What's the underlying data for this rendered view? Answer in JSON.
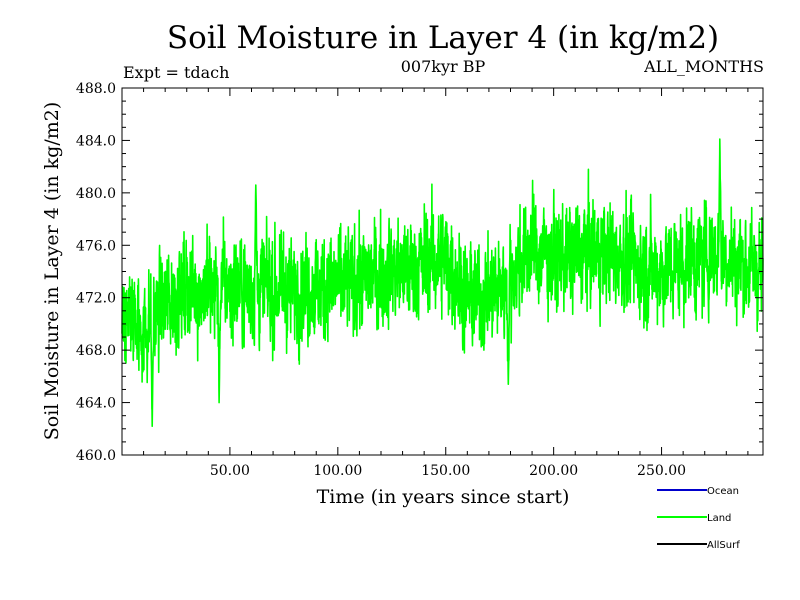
{
  "chart_data": {
    "type": "line",
    "title": "Soil Moisture in Layer 4 (in kg/m2)",
    "subtitle_left": "Expt = tdach",
    "subtitle_center": "007kyr BP",
    "subtitle_right": "ALL_MONTHS",
    "xlabel": "Time (in years since start)",
    "ylabel": "Soil Moisture in Layer 4 (in kg/m2)",
    "xlim": [
      0,
      297
    ],
    "ylim": [
      460,
      488
    ],
    "xticks": [
      50,
      100,
      150,
      200,
      250
    ],
    "xtick_labels": [
      "50.00",
      "100.00",
      "150.00",
      "200.00",
      "250.00"
    ],
    "yticks": [
      460,
      464,
      468,
      472,
      476,
      480,
      484,
      488
    ],
    "ytick_labels": [
      "460.0",
      "464.0",
      "468.0",
      "472.0",
      "476.0",
      "480.0",
      "484.0",
      "488.0"
    ],
    "legend": [
      {
        "name": "Ocean",
        "color": "#0000cc"
      },
      {
        "name": "Land",
        "color": "#00ff00"
      },
      {
        "name": "AllSurf",
        "color": "#000000"
      }
    ],
    "series": [
      {
        "name": "Land",
        "color": "#00ff00",
        "trend_x": [
          0,
          10,
          20,
          30,
          50,
          75,
          100,
          125,
          150,
          160,
          175,
          190,
          200,
          225,
          250,
          275,
          297
        ],
        "trend_y": [
          471.0,
          469.5,
          471.5,
          472.5,
          473.0,
          472.5,
          473.0,
          474.0,
          475.0,
          472.0,
          472.5,
          476.0,
          475.0,
          475.5,
          474.0,
          475.5,
          474.0
        ],
        "amplitude": 2.6,
        "samples_per_year": 12,
        "extremes": [
          {
            "x": 14,
            "y": 462.2
          },
          {
            "x": 45,
            "y": 464.0
          },
          {
            "x": 62,
            "y": 480.6
          },
          {
            "x": 179,
            "y": 465.4
          },
          {
            "x": 277,
            "y": 484.1
          }
        ]
      }
    ]
  }
}
